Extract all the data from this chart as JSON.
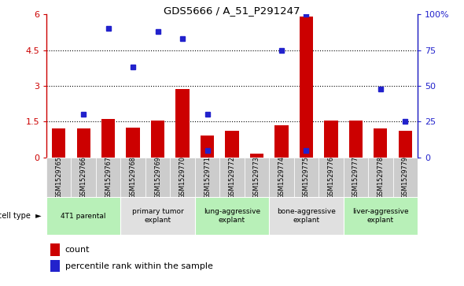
{
  "title": "GDS5666 / A_51_P291247",
  "samples": [
    "GSM1529765",
    "GSM1529766",
    "GSM1529767",
    "GSM1529768",
    "GSM1529769",
    "GSM1529770",
    "GSM1529771",
    "GSM1529772",
    "GSM1529773",
    "GSM1529774",
    "GSM1529775",
    "GSM1529776",
    "GSM1529777",
    "GSM1529778",
    "GSM1529779"
  ],
  "red_counts": [
    1.2,
    1.2,
    1.6,
    1.25,
    1.55,
    2.85,
    0.9,
    1.1,
    0.15,
    1.35,
    5.9,
    1.55,
    1.55,
    1.2,
    1.1
  ],
  "blue_pct_right": [
    null,
    30,
    90,
    63,
    88,
    83,
    30,
    null,
    null,
    75,
    100,
    null,
    null,
    48,
    25
  ],
  "blue_small_right": [
    null,
    null,
    null,
    null,
    null,
    null,
    5,
    null,
    null,
    null,
    5,
    null,
    null,
    null,
    null
  ],
  "cell_groups": [
    {
      "label": "4T1 parental",
      "start": 0,
      "end": 2,
      "color": "#b8f0b8"
    },
    {
      "label": "primary tumor\nexplant",
      "start": 3,
      "end": 5,
      "color": "#e0e0e0"
    },
    {
      "label": "lung-aggressive\nexplant",
      "start": 6,
      "end": 8,
      "color": "#b8f0b8"
    },
    {
      "label": "bone-aggressive\nexplant",
      "start": 9,
      "end": 11,
      "color": "#e0e0e0"
    },
    {
      "label": "liver-aggressive\nexplant",
      "start": 12,
      "end": 14,
      "color": "#b8f0b8"
    }
  ],
  "ylim_left": [
    0,
    6
  ],
  "ylim_right": [
    0,
    100
  ],
  "yticks_left": [
    0,
    1.5,
    3.0,
    4.5,
    6.0
  ],
  "ytick_labels_left": [
    "0",
    "1.5",
    "3",
    "4.5",
    "6"
  ],
  "yticks_right": [
    0,
    25,
    50,
    75,
    100
  ],
  "ytick_labels_right": [
    "0",
    "25",
    "50",
    "75",
    "100%"
  ],
  "bar_color": "#cc0000",
  "dot_color": "#2222cc",
  "bg_color_main": "#ffffff",
  "sample_row_color": "#cccccc",
  "group_colors": [
    "#b8f0b8",
    "#e0e0e0",
    "#b8f0b8",
    "#e0e0e0",
    "#b8f0b8"
  ]
}
